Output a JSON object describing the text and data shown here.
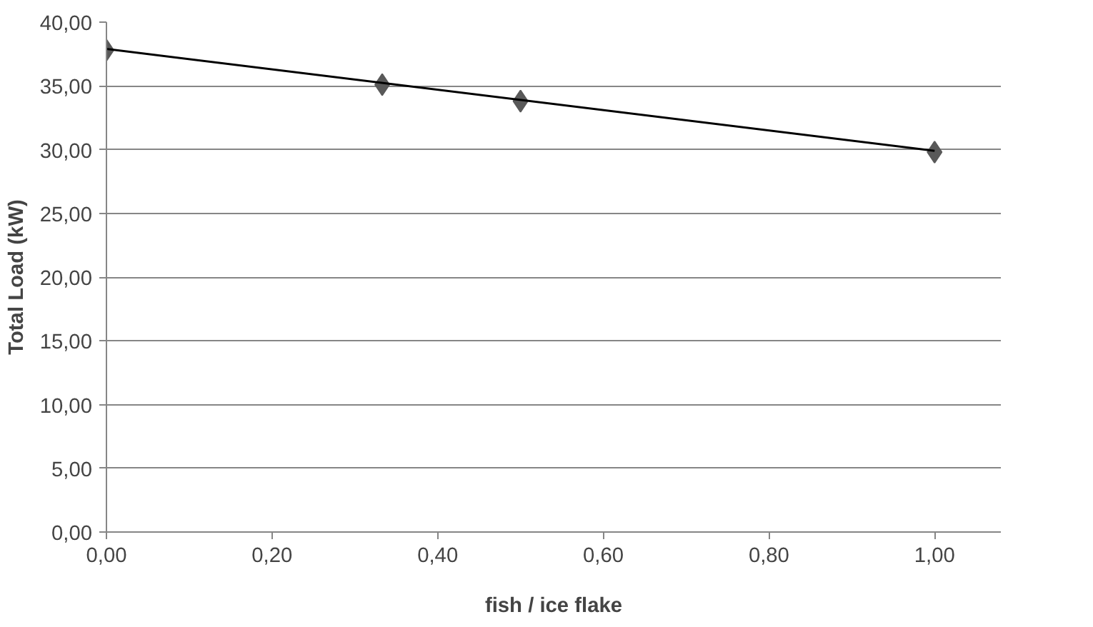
{
  "chart_data": {
    "type": "scatter",
    "xlabel": "fish / ice flake",
    "ylabel": "Total Load (kW)",
    "series": [
      {
        "color": "#595959",
        "x": [
          0.0,
          0.333,
          0.5,
          1.0
        ],
        "values": [
          37.8,
          35.1,
          33.8,
          29.8
        ],
        "marker": "diamond"
      },
      {
        "type": "line",
        "color": "#000000",
        "x": [
          0.0,
          1.0
        ],
        "values": [
          37.9,
          29.9
        ],
        "marker": "none"
      }
    ],
    "xlim": [
      0,
      1.08
    ],
    "ylim": [
      0,
      40
    ],
    "xticks": [
      {
        "value": 0,
        "label": "0,00"
      },
      {
        "value": 0.2,
        "label": "0,20"
      },
      {
        "value": 0.4,
        "label": "0,40"
      },
      {
        "value": 0.6,
        "label": "0,60"
      },
      {
        "value": 0.8,
        "label": "0,80"
      },
      {
        "value": 1.0,
        "label": "1,00"
      }
    ],
    "yticks": [
      {
        "value": 0,
        "label": "0,00"
      },
      {
        "value": 5,
        "label": "5,00"
      },
      {
        "value": 10,
        "label": "10,00"
      },
      {
        "value": 15,
        "label": "15,00"
      },
      {
        "value": 20,
        "label": "20,00"
      },
      {
        "value": 25,
        "label": "25,00"
      },
      {
        "value": 30,
        "label": "30,00"
      },
      {
        "value": 35,
        "label": "35,00"
      },
      {
        "value": 40,
        "label": "40,00"
      }
    ],
    "grid": "y"
  }
}
